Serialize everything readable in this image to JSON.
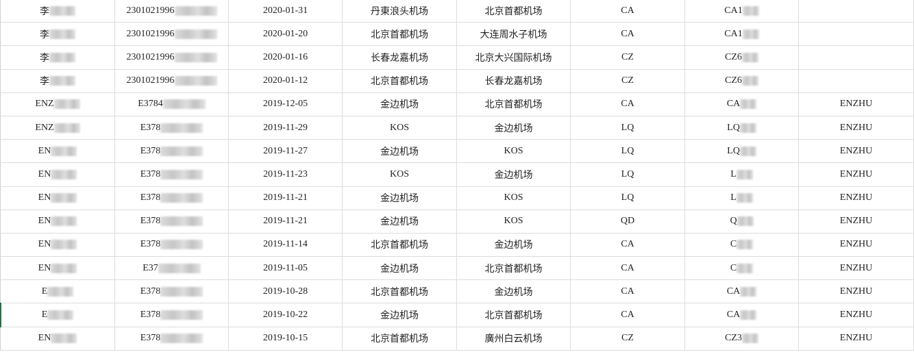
{
  "rows": [
    {
      "name": "李",
      "id": "2301021996",
      "date": "2020-01-31",
      "from": "丹東浪头机场",
      "to": "北京首都机场",
      "airline": "CA",
      "flight": "CA1",
      "note": ""
    },
    {
      "name": "李",
      "id": "2301021996",
      "date": "2020-01-20",
      "from": "北京首都机场",
      "to": "大连周水子机场",
      "airline": "CA",
      "flight": "CA1",
      "note": ""
    },
    {
      "name": "李",
      "id": "2301021996",
      "date": "2020-01-16",
      "from": "长春龙嘉机场",
      "to": "北京大兴国际机场",
      "airline": "CZ",
      "flight": "CZ6",
      "note": ""
    },
    {
      "name": "李",
      "id": "2301021996",
      "date": "2020-01-12",
      "from": "北京首都机场",
      "to": "长春龙嘉机场",
      "airline": "CZ",
      "flight": "CZ6",
      "note": ""
    },
    {
      "name": "ENZ",
      "id": "E3784",
      "date": "2019-12-05",
      "from": "金边机场",
      "to": "北京首都机场",
      "airline": "CA",
      "flight": "CA",
      "note": "ENZHU"
    },
    {
      "name": "ENZ",
      "id": "E378",
      "date": "2019-11-29",
      "from": "KOS",
      "to": "金边机场",
      "airline": "LQ",
      "flight": "LQ",
      "note": "ENZHU"
    },
    {
      "name": "EN",
      "id": "E378",
      "date": "2019-11-27",
      "from": "金边机场",
      "to": "KOS",
      "airline": "LQ",
      "flight": "LQ",
      "note": "ENZHU"
    },
    {
      "name": "EN",
      "id": "E378",
      "date": "2019-11-23",
      "from": "KOS",
      "to": "金边机场",
      "airline": "LQ",
      "flight": "L",
      "note": "ENZHU"
    },
    {
      "name": "EN",
      "id": "E378",
      "date": "2019-11-21",
      "from": "金边机场",
      "to": "KOS",
      "airline": "LQ",
      "flight": "L",
      "note": "ENZHU"
    },
    {
      "name": "EN",
      "id": "E378",
      "date": "2019-11-21",
      "from": "金边机场",
      "to": "KOS",
      "airline": "QD",
      "flight": "Q",
      "note": "ENZHU"
    },
    {
      "name": "EN",
      "id": "E378",
      "date": "2019-11-14",
      "from": "北京首都机场",
      "to": "金边机场",
      "airline": "CA",
      "flight": "C",
      "note": "ENZHU"
    },
    {
      "name": "EN",
      "id": "E37",
      "date": "2019-11-05",
      "from": "金边机场",
      "to": "北京首都机场",
      "airline": "CA",
      "flight": "C",
      "note": "ENZHU"
    },
    {
      "name": "E",
      "id": "E378",
      "date": "2019-10-28",
      "from": "北京首都机场",
      "to": "金边机场",
      "airline": "CA",
      "flight": "CA",
      "note": "ENZHU"
    },
    {
      "name": "E",
      "id": "E378",
      "date": "2019-10-22",
      "from": "金边机场",
      "to": "北京首都机场",
      "airline": "CA",
      "flight": "CA",
      "note": "ENZHU"
    },
    {
      "name": "EN",
      "id": "E378",
      "date": "2019-10-15",
      "from": "北京首都机场",
      "to": "廣州白云机场",
      "airline": "CZ",
      "flight": "CZ3",
      "note": "ENZHU"
    }
  ]
}
